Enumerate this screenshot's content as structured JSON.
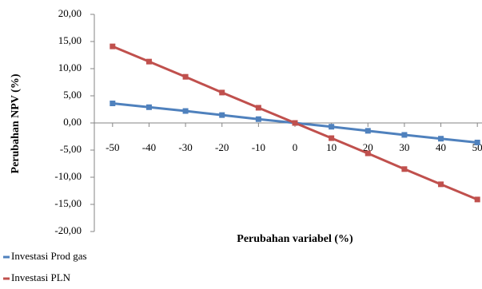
{
  "chart_data": {
    "type": "line",
    "x_label": "Perubahan variabel (%)",
    "y_label": "Perubahan NPV (%)",
    "x": [
      -50,
      -40,
      -30,
      -20,
      -10,
      0,
      10,
      20,
      30,
      40,
      50
    ],
    "series": [
      {
        "name": "Investasi Prod gas",
        "color": "#4f81bd",
        "values": [
          3.6,
          2.9,
          2.2,
          1.45,
          0.7,
          0,
          -0.7,
          -1.45,
          -2.2,
          -2.9,
          -3.6
        ]
      },
      {
        "name": "Investasi PLN",
        "color": "#c0504d",
        "values": [
          14.1,
          11.3,
          8.5,
          5.6,
          2.8,
          0,
          -2.8,
          -5.6,
          -8.5,
          -11.3,
          -14.1
        ]
      }
    ],
    "xlim": [
      -55,
      55
    ],
    "xticks": [
      -50,
      -40,
      -30,
      -20,
      -10,
      0,
      10,
      20,
      30,
      40,
      50
    ],
    "ylim": [
      -20,
      20
    ],
    "yticks": [
      {
        "value": -20,
        "label": "-20,00"
      },
      {
        "value": -15,
        "label": "-15,00"
      },
      {
        "value": -10,
        "label": "-10,00"
      },
      {
        "value": -5,
        "label": "-5,00"
      },
      {
        "value": 0,
        "label": "0,00"
      },
      {
        "value": 5,
        "label": "5,00"
      },
      {
        "value": 10,
        "label": "10,00"
      },
      {
        "value": 15,
        "label": "15,00"
      },
      {
        "value": 20,
        "label": "20,00"
      }
    ],
    "grid": false,
    "legend": "bottom-left"
  }
}
